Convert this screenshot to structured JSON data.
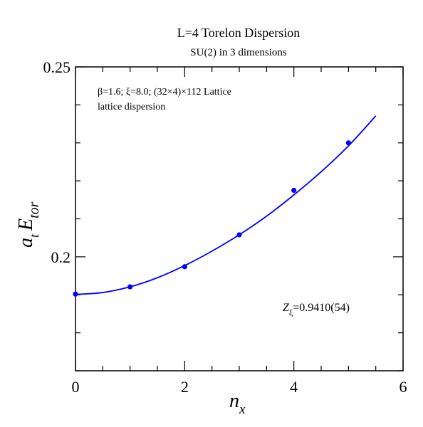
{
  "chart_data": {
    "type": "scatter",
    "title": "L=4 Torelon Dispersion",
    "subtitle": "SU(2) in 3 dimensions",
    "xlabel": {
      "base": "n",
      "sub": "x"
    },
    "ylabel": {
      "a": "a",
      "a_sub": "t",
      "e": "E",
      "e_sub": "tor"
    },
    "xlim": [
      0,
      6
    ],
    "ylim": [
      0.17,
      0.25
    ],
    "x_ticks": [
      {
        "value": 0,
        "label": "0"
      },
      {
        "value": 2,
        "label": "2"
      },
      {
        "value": 4,
        "label": "4"
      },
      {
        "value": 6,
        "label": "6"
      }
    ],
    "y_ticks": [
      {
        "value": 0.2,
        "label": "0.2"
      },
      {
        "value": 0.25,
        "label": "0.25"
      }
    ],
    "annotation_line1": "β=1.6;  ξ=8.0; (32×4)×112 Lattice",
    "annotation_line2": "lattice dispersion",
    "z_label": {
      "base": "Z",
      "sub": "ξ",
      "value": "=0.9410(54)"
    },
    "series": [
      {
        "kind": "points",
        "color": "#0000ff",
        "x": [
          0,
          1,
          2,
          3,
          4,
          5
        ],
        "y": [
          0.1902,
          0.1921,
          0.1974,
          0.2058,
          0.2175,
          0.23
        ]
      },
      {
        "kind": "fit-curve",
        "color": "#0000ff",
        "x": [
          0,
          0.5,
          1,
          1.5,
          2,
          2.5,
          3,
          3.5,
          4,
          4.5,
          5,
          5.5
        ],
        "y": [
          0.1901,
          0.1906,
          0.1921,
          0.1945,
          0.1977,
          0.2015,
          0.2058,
          0.2107,
          0.2163,
          0.2224,
          0.2292,
          0.2371
        ]
      }
    ]
  }
}
